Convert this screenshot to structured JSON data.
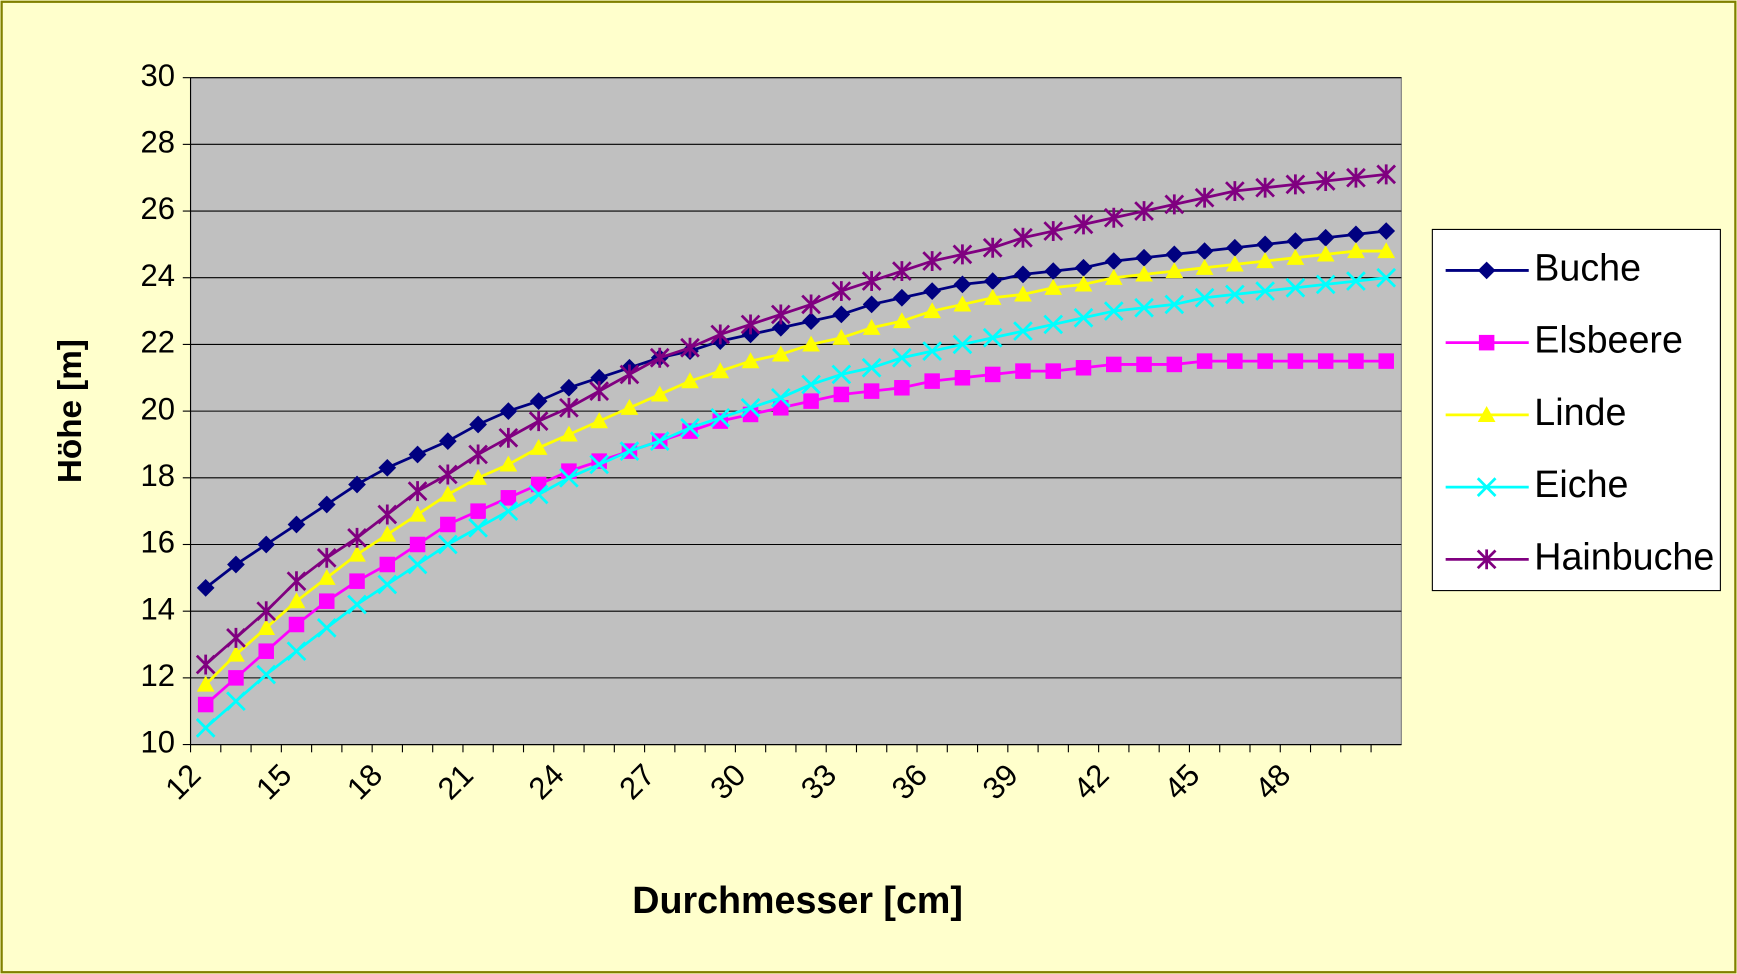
{
  "chart_data": {
    "type": "line",
    "x_label": "Durchmesser [cm]",
    "y_label": "Höhe [m]",
    "categories": [
      12,
      null,
      null,
      15,
      null,
      null,
      18,
      null,
      null,
      21,
      null,
      null,
      24,
      null,
      null,
      27,
      null,
      null,
      30,
      null,
      null,
      33,
      null,
      null,
      36,
      null,
      null,
      39,
      null,
      null,
      42,
      null,
      null,
      45,
      null,
      null,
      48,
      null,
      null,
      null
    ],
    "ylim": [
      10,
      30
    ],
    "yticks": [
      10,
      12,
      14,
      16,
      18,
      20,
      22,
      24,
      26,
      28,
      30
    ],
    "grid": true,
    "legend": "right",
    "series": [
      {
        "name": "Buche",
        "color": "#000080",
        "marker": "diamond",
        "values": [
          14.7,
          15.4,
          16.0,
          16.6,
          17.2,
          17.8,
          18.3,
          18.7,
          19.1,
          19.6,
          20.0,
          20.3,
          20.7,
          21.0,
          21.3,
          21.6,
          21.8,
          22.1,
          22.3,
          22.5,
          22.7,
          22.9,
          23.2,
          23.4,
          23.6,
          23.8,
          23.9,
          24.1,
          24.2,
          24.3,
          24.5,
          24.6,
          24.7,
          24.8,
          24.9,
          25.0,
          25.1,
          25.2,
          25.3,
          25.4
        ]
      },
      {
        "name": "Elsbeere",
        "color": "#ff00ff",
        "marker": "square",
        "values": [
          11.2,
          12.0,
          12.8,
          13.6,
          14.3,
          14.9,
          15.4,
          16.0,
          16.6,
          17.0,
          17.4,
          17.8,
          18.2,
          18.5,
          18.8,
          19.1,
          19.4,
          19.7,
          19.9,
          20.1,
          20.3,
          20.5,
          20.6,
          20.7,
          20.9,
          21.0,
          21.1,
          21.2,
          21.2,
          21.3,
          21.4,
          21.4,
          21.4,
          21.5,
          21.5,
          21.5,
          21.5,
          21.5,
          21.5,
          21.5
        ]
      },
      {
        "name": "Linde",
        "color": "#ffff00",
        "marker": "triangle",
        "values": [
          11.8,
          12.7,
          13.5,
          14.3,
          15.0,
          15.7,
          16.3,
          16.9,
          17.5,
          18.0,
          18.4,
          18.9,
          19.3,
          19.7,
          20.1,
          20.5,
          20.9,
          21.2,
          21.5,
          21.7,
          22.0,
          22.2,
          22.5,
          22.7,
          23.0,
          23.2,
          23.4,
          23.5,
          23.7,
          23.8,
          24.0,
          24.1,
          24.2,
          24.3,
          24.4,
          24.5,
          24.6,
          24.7,
          24.8,
          24.8
        ]
      },
      {
        "name": "Eiche",
        "color": "#00ffff",
        "marker": "x",
        "values": [
          10.5,
          11.3,
          12.1,
          12.8,
          13.5,
          14.2,
          14.8,
          15.4,
          16.0,
          16.5,
          17.0,
          17.5,
          18.0,
          18.4,
          18.8,
          19.1,
          19.5,
          19.8,
          20.1,
          20.4,
          20.8,
          21.1,
          21.3,
          21.6,
          21.8,
          22.0,
          22.2,
          22.4,
          22.6,
          22.8,
          23.0,
          23.1,
          23.2,
          23.4,
          23.5,
          23.6,
          23.7,
          23.8,
          23.9,
          24.0
        ]
      },
      {
        "name": "Hainbuche",
        "color": "#800080",
        "marker": "star",
        "values": [
          12.4,
          13.2,
          14.0,
          14.9,
          15.6,
          16.2,
          16.9,
          17.6,
          18.1,
          18.7,
          19.2,
          19.7,
          20.1,
          20.6,
          21.1,
          21.6,
          21.9,
          22.3,
          22.6,
          22.9,
          23.2,
          23.6,
          23.9,
          24.2,
          24.5,
          24.7,
          24.9,
          25.2,
          25.4,
          25.6,
          25.8,
          26.0,
          26.2,
          26.4,
          26.6,
          26.7,
          26.8,
          26.9,
          27.0,
          27.1
        ]
      }
    ]
  }
}
